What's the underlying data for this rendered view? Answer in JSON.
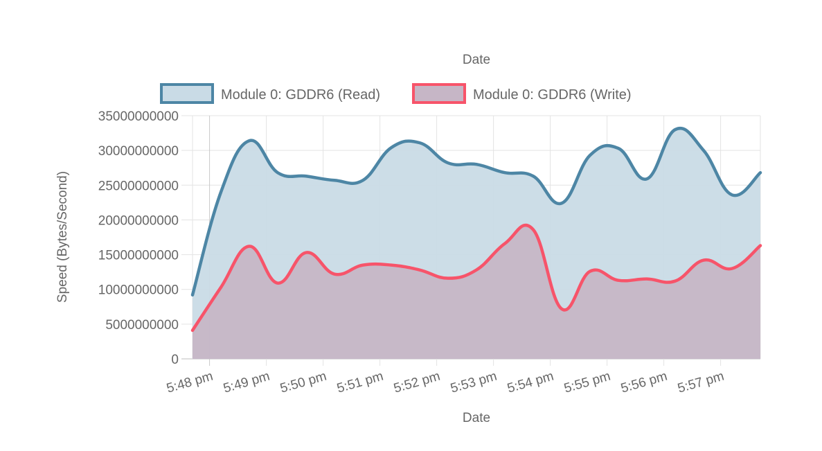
{
  "chart_data": {
    "type": "area",
    "title": "Date",
    "xlabel": "Date",
    "ylabel": "Speed (Bytes/Second)",
    "ylim": [
      0,
      35000000000
    ],
    "y_ticks": [
      "35000000000",
      "30000000000",
      "25000000000",
      "20000000000",
      "15000000000",
      "10000000000",
      "5000000000",
      "0"
    ],
    "y_tick_values": [
      35000000000,
      30000000000,
      25000000000,
      20000000000,
      15000000000,
      10000000000,
      5000000000,
      0
    ],
    "x_tick_labels": [
      "5:48 pm",
      "5:49 pm",
      "5:50 pm",
      "5:51 pm",
      "5:52 pm",
      "5:53 pm",
      "5:54 pm",
      "5:55 pm",
      "5:56 pm",
      "5:57 pm"
    ],
    "xlim_minutes": [
      -0.3,
      9.7
    ],
    "x_minutes_after_548pm": [
      -0.3,
      0.2,
      0.7,
      1.2,
      1.7,
      2.2,
      2.7,
      3.2,
      3.7,
      4.2,
      4.7,
      5.2,
      5.7,
      6.2,
      6.7,
      7.2,
      7.7,
      8.2,
      8.7,
      9.2,
      9.7
    ],
    "grid": true,
    "legend_position": "top",
    "series": [
      {
        "name": "Module 0: GDDR6 (Read)",
        "border_color": "#4d86a5",
        "fill_color": "#c9dbe6",
        "values": [
          9200000000,
          24000000000,
          31400000000,
          26800000000,
          26300000000,
          25700000000,
          25700000000,
          30400000000,
          31100000000,
          28200000000,
          28000000000,
          26800000000,
          26300000000,
          22400000000,
          29300000000,
          30300000000,
          25900000000,
          33000000000,
          30000000000,
          23600000000,
          26800000000
        ]
      },
      {
        "name": "Module 0: GDDR6 (Write)",
        "border_color": "#f7546a",
        "fill_color": "#c6b6c6",
        "values": [
          4100000000,
          10300000000,
          16200000000,
          10900000000,
          15300000000,
          12200000000,
          13500000000,
          13500000000,
          12800000000,
          11600000000,
          12800000000,
          16600000000,
          18600000000,
          7200000000,
          12600000000,
          11300000000,
          11500000000,
          11200000000,
          14200000000,
          13000000000,
          16300000000
        ]
      }
    ]
  }
}
